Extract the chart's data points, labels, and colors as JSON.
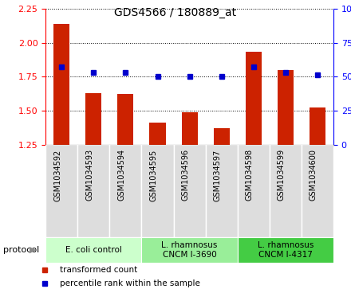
{
  "title": "GDS4566 / 180889_at",
  "samples": [
    "GSM1034592",
    "GSM1034593",
    "GSM1034594",
    "GSM1034595",
    "GSM1034596",
    "GSM1034597",
    "GSM1034598",
    "GSM1034599",
    "GSM1034600"
  ],
  "transformed_count": [
    2.14,
    1.63,
    1.62,
    1.41,
    1.49,
    1.37,
    1.93,
    1.8,
    1.52
  ],
  "percentile_rank": [
    57,
    53,
    53,
    50,
    50,
    50,
    57,
    53,
    51
  ],
  "ylim_left": [
    1.25,
    2.25
  ],
  "ylim_right": [
    0,
    100
  ],
  "yticks_left": [
    1.25,
    1.5,
    1.75,
    2.0,
    2.25
  ],
  "yticks_right": [
    0,
    25,
    50,
    75,
    100
  ],
  "bar_color": "#cc2200",
  "dot_color": "#0000cc",
  "background_color": "#ffffff",
  "plot_bg_color": "#ffffff",
  "sample_box_color": "#dddddd",
  "protocol_groups": [
    {
      "label": "E. coli control",
      "start": 0,
      "end": 3,
      "color": "#ccffcc"
    },
    {
      "label": "L. rhamnosus\nCNCM I-3690",
      "start": 3,
      "end": 6,
      "color": "#99ee99"
    },
    {
      "label": "L. rhamnosus\nCNCM I-4317",
      "start": 6,
      "end": 9,
      "color": "#44cc44"
    }
  ]
}
